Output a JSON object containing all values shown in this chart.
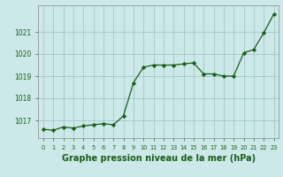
{
  "x": [
    0,
    1,
    2,
    3,
    4,
    5,
    6,
    7,
    8,
    9,
    10,
    11,
    12,
    13,
    14,
    15,
    16,
    17,
    18,
    19,
    20,
    21,
    22,
    23
  ],
  "y": [
    1016.6,
    1016.55,
    1016.7,
    1016.65,
    1016.75,
    1016.8,
    1016.85,
    1016.8,
    1017.2,
    1018.7,
    1019.4,
    1019.5,
    1019.5,
    1019.5,
    1019.55,
    1019.6,
    1019.1,
    1019.1,
    1019.0,
    1019.0,
    1020.05,
    1020.2,
    1020.95,
    1021.8
  ],
  "line_color": "#1a5e1a",
  "marker_color": "#1a5e1a",
  "bg_color": "#cce8e8",
  "grid_color": "#a0c8c8",
  "xlabel": "Graphe pression niveau de la mer (hPa)",
  "xlabel_color": "#1a5e1a",
  "tick_color": "#1a5e1a",
  "ylim": [
    1016.2,
    1022.2
  ],
  "yticks": [
    1017,
    1018,
    1019,
    1020,
    1021
  ],
  "xlim": [
    -0.5,
    23.5
  ],
  "xticks": [
    0,
    1,
    2,
    3,
    4,
    5,
    6,
    7,
    8,
    9,
    10,
    11,
    12,
    13,
    14,
    15,
    16,
    17,
    18,
    19,
    20,
    21,
    22,
    23
  ],
  "xtick_labels": [
    "0",
    "1",
    "2",
    "3",
    "4",
    "5",
    "6",
    "7",
    "8",
    "9",
    "10",
    "11",
    "12",
    "13",
    "14",
    "15",
    "16",
    "17",
    "18",
    "19",
    "20",
    "21",
    "22",
    "23"
  ]
}
